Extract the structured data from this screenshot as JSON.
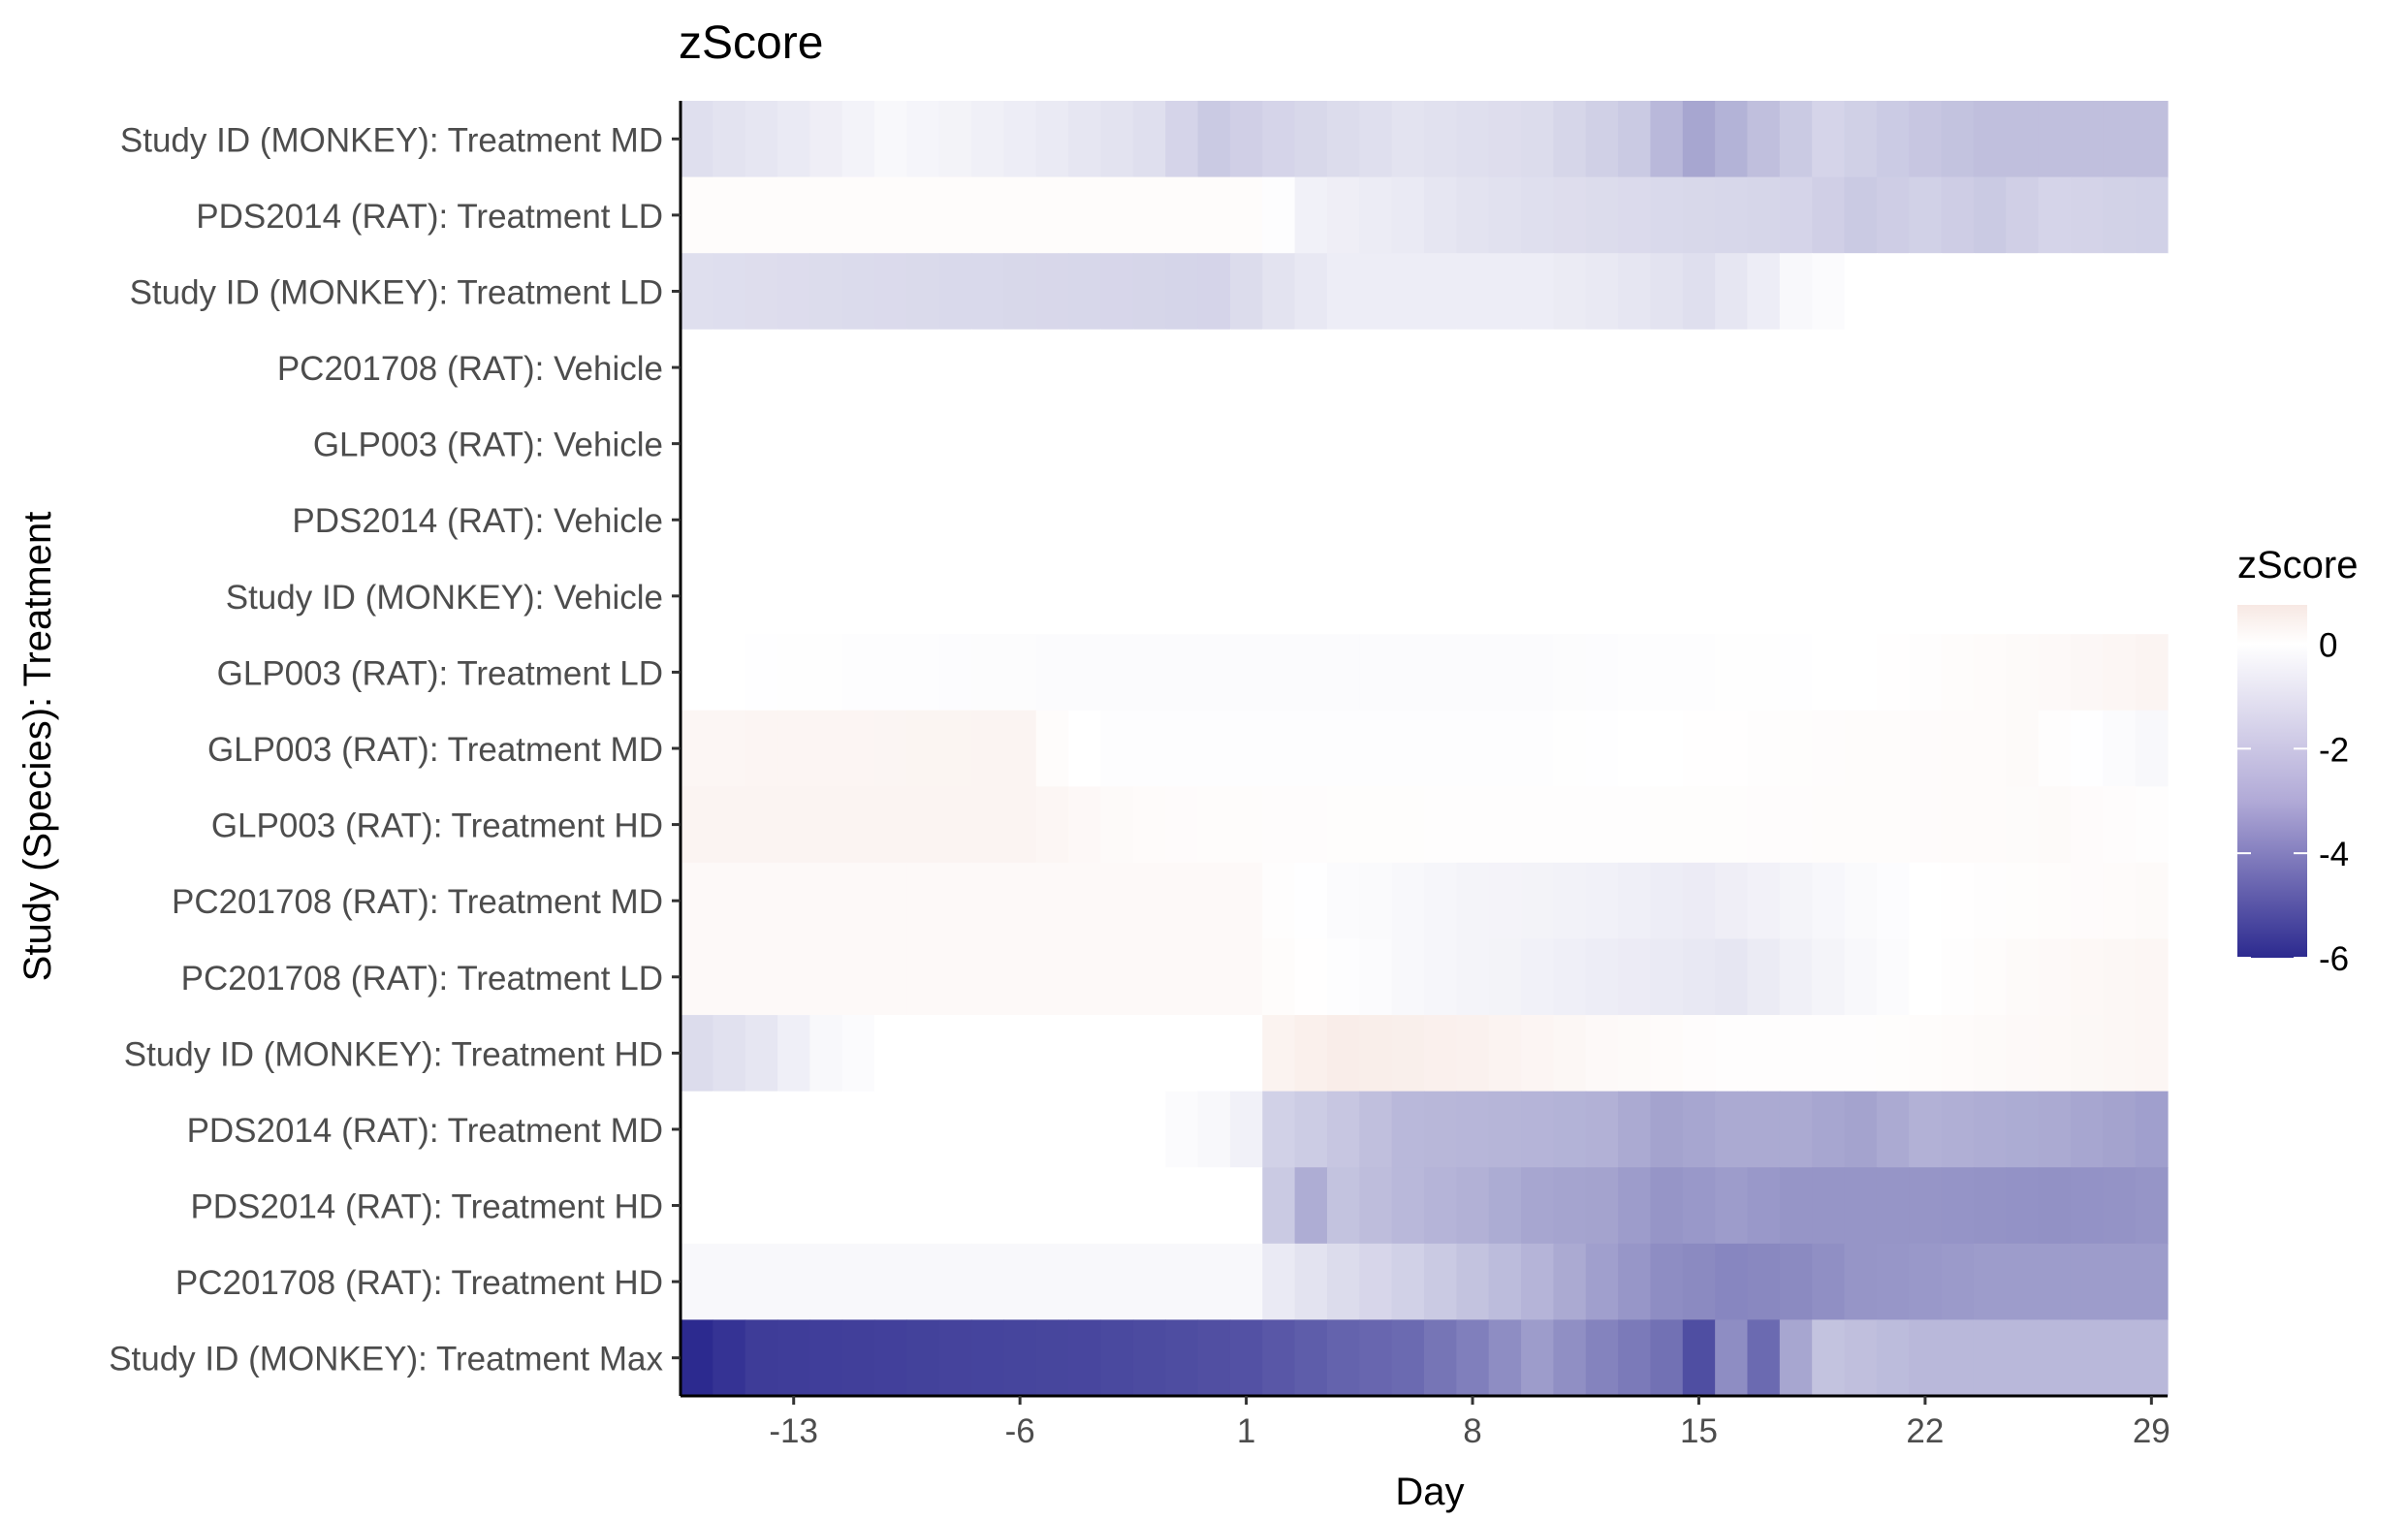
{
  "chart_data": {
    "type": "heatmap",
    "title": "zScore",
    "xlabel": "Day",
    "ylabel": "Study (Species): Treatment",
    "x_ticks": [
      -13,
      -6,
      1,
      8,
      15,
      22,
      29
    ],
    "x_range": [
      -16,
      29
    ],
    "legend": {
      "title": "zScore",
      "position": "right",
      "ticks": [
        0,
        -2,
        -4,
        -6
      ],
      "range": [
        -6,
        0.75
      ],
      "colors": {
        "low": "#2c2a8f",
        "mid": "#ffffff",
        "high": "#f7e8e3"
      }
    },
    "rows": [
      "Study ID (MONKEY): Treatment MD",
      "PDS2014 (RAT): Treatment LD",
      "Study ID (MONKEY): Treatment LD",
      "PC201708 (RAT): Vehicle",
      "GLP003 (RAT): Vehicle",
      "PDS2014 (RAT): Vehicle",
      "Study ID (MONKEY): Vehicle",
      "GLP003 (RAT): Treatment LD",
      "GLP003 (RAT): Treatment MD",
      "GLP003 (RAT): Treatment HD",
      "PC201708 (RAT): Treatment MD",
      "PC201708 (RAT): Treatment LD",
      "Study ID (MONKEY): Treatment HD",
      "PDS2014 (RAT): Treatment MD",
      "PDS2014 (RAT): Treatment HD",
      "PC201708 (RAT): Treatment HD",
      "Study ID (MONKEY): Treatment Max"
    ],
    "profiles": [
      {
        "row": "Study ID (MONKEY): Treatment MD",
        "points": [
          [
            -16,
            -0.9
          ],
          [
            -13,
            -0.6
          ],
          [
            -10,
            -0.2
          ],
          [
            -6,
            -0.5
          ],
          [
            -2,
            -0.9
          ],
          [
            0,
            -1.5
          ],
          [
            2,
            -1.2
          ],
          [
            6,
            -0.8
          ],
          [
            10,
            -1.0
          ],
          [
            13,
            -1.5
          ],
          [
            15,
            -2.5
          ],
          [
            17,
            -1.8
          ],
          [
            19,
            -1.2
          ],
          [
            22,
            -1.6
          ],
          [
            24,
            -1.8
          ],
          [
            29,
            -1.8
          ]
        ]
      },
      {
        "row": "PDS2014 (RAT): Treatment LD",
        "points": [
          [
            -16,
            0.1
          ],
          [
            1.5,
            0.1
          ],
          [
            2.5,
            -0.2
          ],
          [
            3,
            -0.4
          ],
          [
            6,
            -0.6
          ],
          [
            8,
            -0.8
          ],
          [
            12,
            -1.0
          ],
          [
            15,
            -1.1
          ],
          [
            18,
            -1.2
          ],
          [
            20,
            -1.5
          ],
          [
            22,
            -1.3
          ],
          [
            24,
            -1.5
          ],
          [
            26,
            -1.2
          ],
          [
            29,
            -1.3
          ]
        ]
      },
      {
        "row": "Study ID (MONKEY): Treatment LD",
        "points": [
          [
            -16,
            -0.9
          ],
          [
            -12,
            -1.0
          ],
          [
            -6,
            -1.1
          ],
          [
            0,
            -1.2
          ],
          [
            2,
            -0.8
          ],
          [
            4,
            -0.5
          ],
          [
            10,
            -0.5
          ],
          [
            13,
            -0.7
          ],
          [
            15,
            -0.9
          ],
          [
            17,
            -0.5
          ],
          [
            18,
            -0.2
          ],
          [
            20,
            0
          ],
          [
            29,
            0
          ]
        ]
      },
      {
        "row": "PC201708 (RAT): Vehicle",
        "points": [
          [
            -16,
            0
          ],
          [
            29,
            0
          ]
        ]
      },
      {
        "row": "GLP003 (RAT): Vehicle",
        "points": [
          [
            -16,
            0
          ],
          [
            29,
            0
          ]
        ]
      },
      {
        "row": "PDS2014 (RAT): Vehicle",
        "points": [
          [
            -16,
            0
          ],
          [
            29,
            0
          ]
        ]
      },
      {
        "row": "Study ID (MONKEY): Vehicle",
        "points": [
          [
            -16,
            0
          ],
          [
            29,
            0
          ]
        ]
      },
      {
        "row": "GLP003 (RAT): Treatment LD",
        "points": [
          [
            -16,
            0
          ],
          [
            -5,
            -0.1
          ],
          [
            10,
            -0.1
          ],
          [
            20,
            0
          ],
          [
            26,
            0.2
          ],
          [
            29,
            0.35
          ]
        ]
      },
      {
        "row": "GLP003 (RAT): Treatment MD",
        "points": [
          [
            -16,
            0.3
          ],
          [
            -6,
            0.35
          ],
          [
            -5,
            0.1
          ],
          [
            -4,
            0
          ],
          [
            -3,
            -0.05
          ],
          [
            10,
            -0.05
          ],
          [
            20,
            0.1
          ],
          [
            25,
            0.15
          ],
          [
            29,
            -0.2
          ]
        ]
      },
      {
        "row": "GLP003 (RAT): Treatment HD",
        "points": [
          [
            -16,
            0.35
          ],
          [
            -6,
            0.35
          ],
          [
            -3,
            0.15
          ],
          [
            0,
            0.1
          ],
          [
            10,
            0.05
          ],
          [
            20,
            0.1
          ],
          [
            26,
            0.15
          ],
          [
            29,
            0.05
          ]
        ]
      },
      {
        "row": "PC201708 (RAT): Treatment MD",
        "points": [
          [
            -16,
            0.2
          ],
          [
            1,
            0.2
          ],
          [
            2,
            0.05
          ],
          [
            4,
            -0.1
          ],
          [
            8,
            -0.3
          ],
          [
            12,
            -0.4
          ],
          [
            15,
            -0.55
          ],
          [
            18,
            -0.3
          ],
          [
            22,
            0
          ],
          [
            26,
            0.1
          ],
          [
            29,
            0.15
          ]
        ]
      },
      {
        "row": "PC201708 (RAT): Treatment LD",
        "points": [
          [
            -16,
            0.2
          ],
          [
            1,
            0.2
          ],
          [
            2,
            0.1
          ],
          [
            6,
            -0.2
          ],
          [
            10,
            -0.4
          ],
          [
            14,
            -0.6
          ],
          [
            16,
            -0.7
          ],
          [
            19,
            -0.3
          ],
          [
            22,
            0
          ],
          [
            26,
            0.2
          ],
          [
            29,
            0.3
          ]
        ]
      },
      {
        "row": "Study ID (MONKEY): Treatment HD",
        "points": [
          [
            -16,
            -1.0
          ],
          [
            -14,
            -0.7
          ],
          [
            -12,
            -0.2
          ],
          [
            -10,
            0
          ],
          [
            1,
            0
          ],
          [
            2,
            0.4
          ],
          [
            4,
            0.6
          ],
          [
            8,
            0.45
          ],
          [
            12,
            0.2
          ],
          [
            16,
            0.05
          ],
          [
            20,
            0.05
          ],
          [
            24,
            0.15
          ],
          [
            29,
            0.3
          ]
        ]
      },
      {
        "row": "PDS2014 (RAT): Treatment MD",
        "points": [
          [
            -16,
            0
          ],
          [
            -2,
            0
          ],
          [
            0,
            -0.2
          ],
          [
            1,
            -0.4
          ],
          [
            2,
            -1.3
          ],
          [
            4,
            -1.6
          ],
          [
            6,
            -2.0
          ],
          [
            10,
            -2.1
          ],
          [
            12,
            -2.2
          ],
          [
            14,
            -2.6
          ],
          [
            16,
            -2.4
          ],
          [
            18,
            -2.4
          ],
          [
            20,
            -2.6
          ],
          [
            22,
            -2.2
          ],
          [
            26,
            -2.4
          ],
          [
            29,
            -2.7
          ]
        ]
      },
      {
        "row": "PDS2014 (RAT): Treatment HD",
        "points": [
          [
            -16,
            0
          ],
          [
            1,
            0
          ],
          [
            2,
            -1.5
          ],
          [
            3,
            -2.3
          ],
          [
            4,
            -1.7
          ],
          [
            6,
            -2.0
          ],
          [
            8,
            -2.2
          ],
          [
            10,
            -2.5
          ],
          [
            12,
            -2.6
          ],
          [
            14,
            -3.0
          ],
          [
            16,
            -2.8
          ],
          [
            18,
            -3.0
          ],
          [
            22,
            -3.0
          ],
          [
            26,
            -3.1
          ],
          [
            29,
            -3.0
          ]
        ]
      },
      {
        "row": "PC201708 (RAT): Treatment HD",
        "points": [
          [
            -16,
            -0.2
          ],
          [
            1,
            -0.2
          ],
          [
            2,
            -0.6
          ],
          [
            4,
            -1.0
          ],
          [
            6,
            -1.3
          ],
          [
            8,
            -1.7
          ],
          [
            10,
            -2.1
          ],
          [
            12,
            -2.7
          ],
          [
            14,
            -3.2
          ],
          [
            16,
            -3.4
          ],
          [
            18,
            -3.3
          ],
          [
            20,
            -3.0
          ],
          [
            24,
            -2.8
          ],
          [
            29,
            -2.8
          ]
        ]
      },
      {
        "row": "Study ID (MONKEY): Treatment Max",
        "points": [
          [
            -16,
            -6.0
          ],
          [
            -14,
            -5.5
          ],
          [
            -8,
            -5.3
          ],
          [
            -4,
            -5.2
          ],
          [
            1,
            -4.9
          ],
          [
            4,
            -4.4
          ],
          [
            6,
            -4.2
          ],
          [
            8,
            -3.6
          ],
          [
            10,
            -2.8
          ],
          [
            12,
            -3.5
          ],
          [
            14,
            -4.0
          ],
          [
            15,
            -5.0
          ],
          [
            16,
            -3.2
          ],
          [
            17,
            -4.2
          ],
          [
            18,
            -2.5
          ],
          [
            19,
            -1.7
          ],
          [
            22,
            -2.0
          ],
          [
            29,
            -2.0
          ]
        ]
      }
    ]
  }
}
